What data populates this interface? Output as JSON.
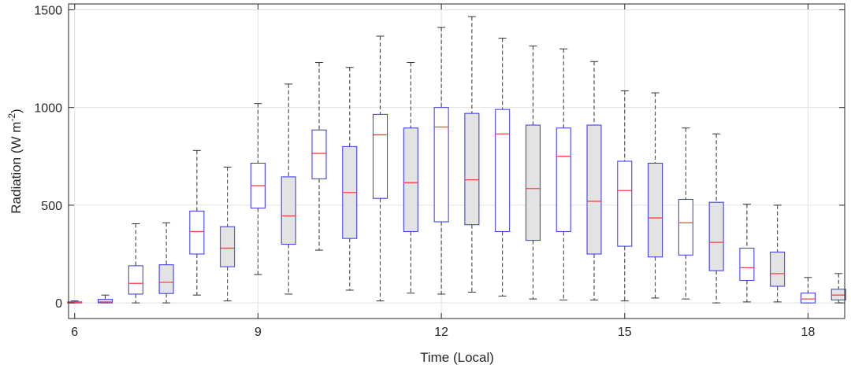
{
  "chart_data": {
    "type": "box",
    "xlabel": "Time (Local)",
    "ylabel_main": "Radiation (W m",
    "ylabel_sup": "-2",
    "ylabel_close": ")",
    "xlim": [
      5.9,
      18.6
    ],
    "ylim": [
      -80,
      1530
    ],
    "xticks": [
      6,
      9,
      12,
      15,
      18
    ],
    "yticks": [
      0,
      500,
      1000,
      1500
    ],
    "grid": true,
    "colors": {
      "box_edge": "#3333ee",
      "median": "#ff4040",
      "whisker": "#333333",
      "fill_shaded": "#e3e3e3",
      "grid": "#e0e0e0",
      "axis": "#262626"
    },
    "boxes": [
      {
        "x": 6.0,
        "low": 0,
        "q1": 0,
        "median": 2,
        "q3": 5,
        "high": 10,
        "shaded": true
      },
      {
        "x": 6.5,
        "low": 0,
        "q1": 0,
        "median": 5,
        "q3": 18,
        "high": 40,
        "shaded": true
      },
      {
        "x": 7.0,
        "low": 0,
        "q1": 45,
        "median": 100,
        "q3": 190,
        "high": 405,
        "shaded": false
      },
      {
        "x": 7.5,
        "low": 0,
        "q1": 48,
        "median": 105,
        "q3": 195,
        "high": 410,
        "shaded": true
      },
      {
        "x": 8.0,
        "low": 40,
        "q1": 250,
        "median": 365,
        "q3": 470,
        "high": 780,
        "shaded": false
      },
      {
        "x": 8.5,
        "low": 10,
        "q1": 185,
        "median": 280,
        "q3": 390,
        "high": 695,
        "shaded": true
      },
      {
        "x": 9.0,
        "low": 145,
        "q1": 485,
        "median": 600,
        "q3": 715,
        "high": 1020,
        "shaded": false
      },
      {
        "x": 9.5,
        "low": 45,
        "q1": 300,
        "median": 445,
        "q3": 645,
        "high": 1120,
        "shaded": true
      },
      {
        "x": 10.0,
        "low": 270,
        "q1": 635,
        "median": 765,
        "q3": 885,
        "high": 1230,
        "shaded": false
      },
      {
        "x": 10.5,
        "low": 65,
        "q1": 330,
        "median": 565,
        "q3": 800,
        "high": 1205,
        "shaded": true
      },
      {
        "x": 11.0,
        "low": 10,
        "q1": 535,
        "median": 860,
        "q3": 965,
        "high": 1365,
        "shaded": false
      },
      {
        "x": 11.5,
        "low": 50,
        "q1": 365,
        "median": 615,
        "q3": 895,
        "high": 1230,
        "shaded": true
      },
      {
        "x": 12.0,
        "low": 45,
        "q1": 415,
        "median": 900,
        "q3": 1000,
        "high": 1410,
        "shaded": false
      },
      {
        "x": 12.5,
        "low": 55,
        "q1": 400,
        "median": 630,
        "q3": 970,
        "high": 1465,
        "shaded": true
      },
      {
        "x": 13.0,
        "low": 35,
        "q1": 365,
        "median": 865,
        "q3": 990,
        "high": 1355,
        "shaded": false
      },
      {
        "x": 13.5,
        "low": 20,
        "q1": 320,
        "median": 585,
        "q3": 910,
        "high": 1315,
        "shaded": true
      },
      {
        "x": 14.0,
        "low": 15,
        "q1": 365,
        "median": 750,
        "q3": 895,
        "high": 1300,
        "shaded": false
      },
      {
        "x": 14.5,
        "low": 15,
        "q1": 250,
        "median": 520,
        "q3": 910,
        "high": 1235,
        "shaded": true
      },
      {
        "x": 15.0,
        "low": 10,
        "q1": 290,
        "median": 575,
        "q3": 725,
        "high": 1085,
        "shaded": false
      },
      {
        "x": 15.5,
        "low": 25,
        "q1": 235,
        "median": 435,
        "q3": 715,
        "high": 1075,
        "shaded": true
      },
      {
        "x": 16.0,
        "low": 20,
        "q1": 245,
        "median": 410,
        "q3": 530,
        "high": 895,
        "shaded": false
      },
      {
        "x": 16.5,
        "low": 0,
        "q1": 165,
        "median": 310,
        "q3": 515,
        "high": 865,
        "shaded": true
      },
      {
        "x": 17.0,
        "low": 5,
        "q1": 115,
        "median": 180,
        "q3": 280,
        "high": 505,
        "shaded": false
      },
      {
        "x": 17.5,
        "low": 5,
        "q1": 85,
        "median": 150,
        "q3": 260,
        "high": 500,
        "shaded": true
      },
      {
        "x": 18.0,
        "low": 0,
        "q1": 0,
        "median": 20,
        "q3": 50,
        "high": 130,
        "shaded": false
      },
      {
        "x": 18.5,
        "low": 0,
        "q1": 15,
        "median": 40,
        "q3": 70,
        "high": 150,
        "shaded": true
      }
    ]
  }
}
